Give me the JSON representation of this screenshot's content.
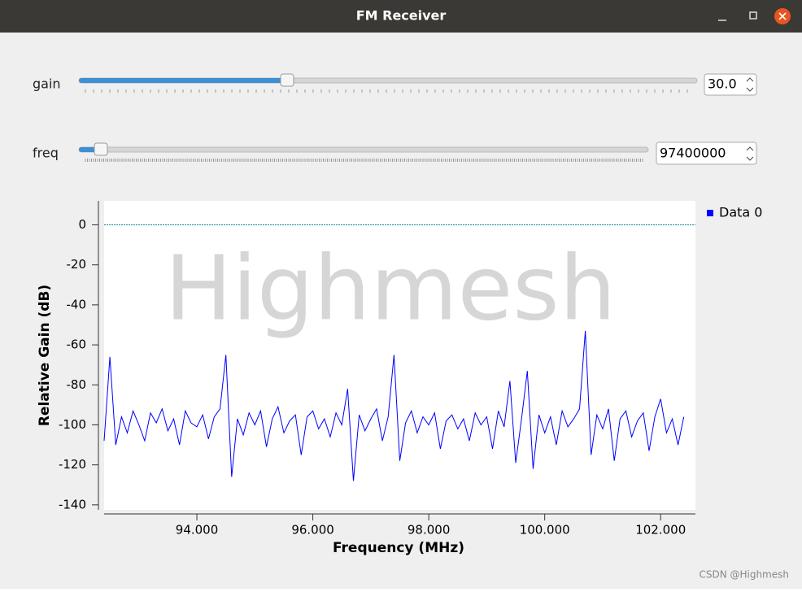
{
  "window": {
    "title": "FM Receiver"
  },
  "controls": [
    {
      "label": "gain",
      "value": "30.0"
    },
    {
      "label": "freq",
      "value": "97400000"
    }
  ],
  "watermark": "Highmesh",
  "credit": "CSDN @Highmesh",
  "chart_data": {
    "type": "line",
    "x_label": "Frequency (MHz)",
    "y_label": "Relative Gain (dB)",
    "xlim": [
      92.4,
      102.6
    ],
    "ylim": [
      -142.5,
      12
    ],
    "xticks": [
      {
        "value": 94,
        "label": "94.000"
      },
      {
        "value": 96,
        "label": "96.000"
      },
      {
        "value": 98,
        "label": "98.000"
      },
      {
        "value": 100,
        "label": "100.000"
      },
      {
        "value": 102,
        "label": "102.000"
      }
    ],
    "yticks": [
      0,
      -20,
      -40,
      -60,
      -80,
      -100,
      -120,
      -140
    ],
    "reference_line": 0,
    "legend": "top-right",
    "x": [
      92.4,
      92.5,
      92.6,
      92.7,
      92.8,
      92.9,
      93.0,
      93.1,
      93.2,
      93.3,
      93.4,
      93.5,
      93.6,
      93.7,
      93.8,
      93.9,
      94.0,
      94.1,
      94.2,
      94.3,
      94.4,
      94.5,
      94.6,
      94.7,
      94.8,
      94.9,
      95.0,
      95.1,
      95.2,
      95.3,
      95.4,
      95.5,
      95.6,
      95.7,
      95.8,
      95.9,
      96.0,
      96.1,
      96.2,
      96.3,
      96.4,
      96.5,
      96.6,
      96.7,
      96.8,
      96.9,
      97.0,
      97.1,
      97.2,
      97.3,
      97.4,
      97.5,
      97.6,
      97.7,
      97.8,
      97.9,
      98.0,
      98.1,
      98.2,
      98.3,
      98.4,
      98.5,
      98.6,
      98.7,
      98.8,
      98.9,
      99.0,
      99.1,
      99.2,
      99.3,
      99.4,
      99.5,
      99.6,
      99.7,
      99.8,
      99.9,
      100.0,
      100.1,
      100.2,
      100.3,
      100.4,
      100.5,
      100.6,
      100.7,
      100.8,
      100.9,
      101.0,
      101.1,
      101.2,
      101.3,
      101.4,
      101.5,
      101.6,
      101.7,
      101.8,
      101.9,
      102.0,
      102.1,
      102.2,
      102.3,
      102.4
    ],
    "series": [
      {
        "name": "Data 0",
        "color": "#0000ff",
        "values": [
          -108,
          -66,
          -110,
          -96,
          -104,
          -93,
          -100,
          -108,
          -94,
          -99,
          -92,
          -103,
          -97,
          -110,
          -93,
          -99,
          -101,
          -95,
          -107,
          -96,
          -92,
          -65,
          -126,
          -97,
          -105,
          -94,
          -100,
          -93,
          -111,
          -97,
          -91,
          -104,
          -98,
          -95,
          -115,
          -96,
          -93,
          -102,
          -97,
          -106,
          -94,
          -100,
          -82,
          -128,
          -95,
          -103,
          -97,
          -92,
          -108,
          -96,
          -65,
          -118,
          -99,
          -93,
          -104,
          -96,
          -100,
          -94,
          -112,
          -98,
          -95,
          -102,
          -97,
          -108,
          -94,
          -100,
          -96,
          -112,
          -93,
          -101,
          -78,
          -119,
          -97,
          -73,
          -122,
          -95,
          -104,
          -96,
          -110,
          -93,
          -101,
          -97,
          -92,
          -53,
          -115,
          -95,
          -102,
          -92,
          -118,
          -97,
          -93,
          -106,
          -98,
          -94,
          -113,
          -96,
          -87,
          -104,
          -97,
          -110,
          -96
        ]
      }
    ]
  }
}
